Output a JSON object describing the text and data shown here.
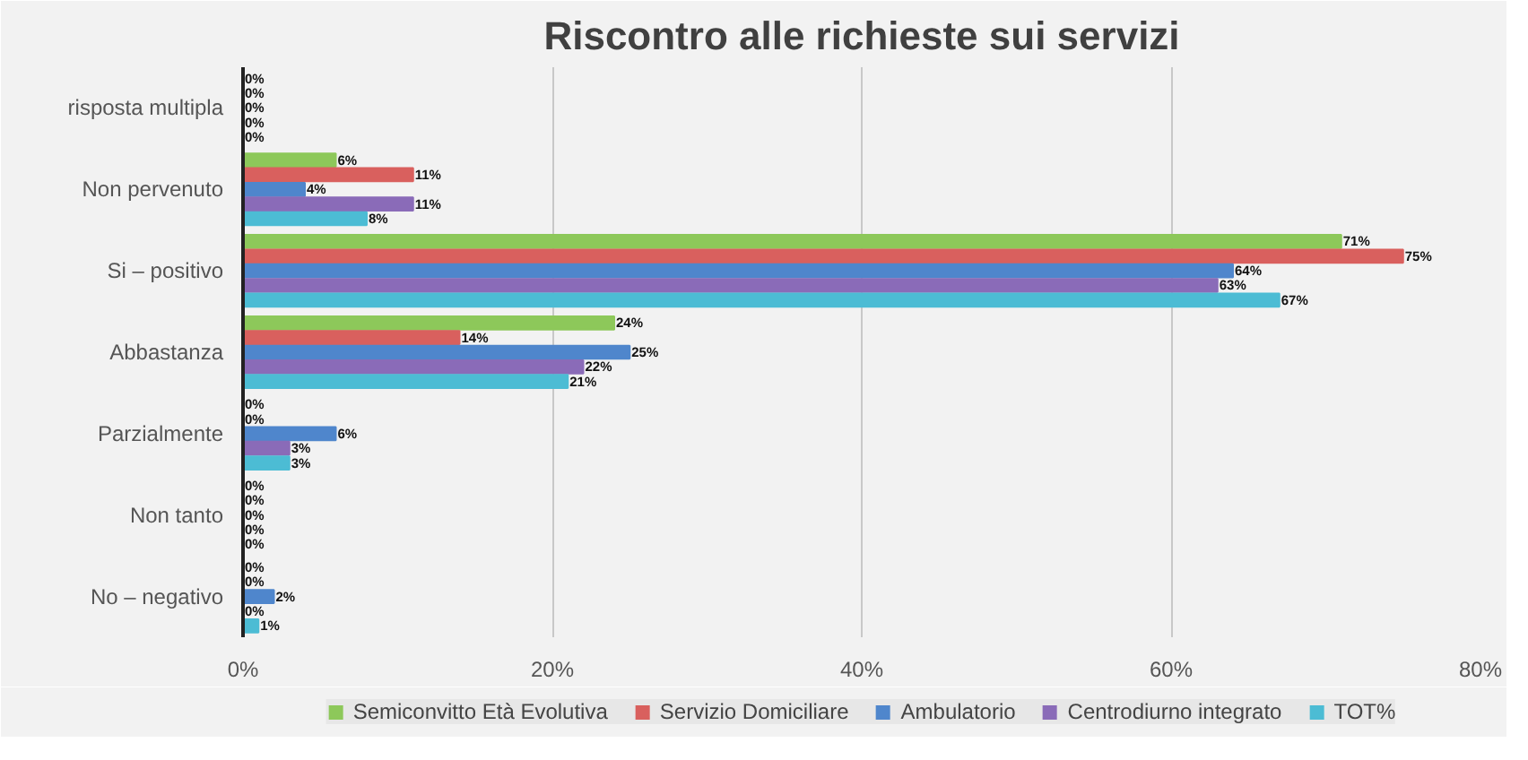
{
  "chart_data": {
    "type": "bar",
    "orientation": "horizontal",
    "title": "Riscontro alle richieste sui servizi",
    "categories": [
      "risposta multipla",
      "Non pervenuto",
      "Si – positivo",
      "Abbastanza",
      "Parzialmente",
      "Non tanto",
      "No – negativo"
    ],
    "series": [
      {
        "name": "Semiconvitto Età Evolutiva",
        "color": "#8dc85a",
        "values": [
          0,
          6,
          71,
          24,
          0,
          0,
          0
        ],
        "value_labels": [
          "0%",
          "6%",
          "71%",
          "24%",
          "0%",
          "0%",
          "0%"
        ]
      },
      {
        "name": "Servizio Domiciliare",
        "color": "#d9605e",
        "values": [
          0,
          11,
          75,
          14,
          0,
          0,
          0
        ],
        "value_labels": [
          "0%",
          "11%",
          "75%",
          "14%",
          "0%",
          "0%",
          "0%"
        ]
      },
      {
        "name": "Ambulatorio",
        "color": "#4f86cc",
        "values": [
          0,
          4,
          64,
          25,
          6,
          0,
          2
        ],
        "value_labels": [
          "0%",
          "4%",
          "64%",
          "25%",
          "6%",
          "0%",
          "2%"
        ]
      },
      {
        "name": "Centrodiurno integrato",
        "color": "#8a6bb8",
        "values": [
          0,
          11,
          63,
          22,
          3,
          0,
          0
        ],
        "value_labels": [
          "0%",
          "11%",
          "63%",
          "22%",
          "3%",
          "0%",
          "0%"
        ]
      },
      {
        "name": "TOT%",
        "color": "#4cbcd4",
        "values": [
          0,
          8,
          67,
          21,
          3,
          0,
          1
        ],
        "value_labels": [
          "0%",
          "8%",
          "67%",
          "21%",
          "3%",
          "0%",
          "1%"
        ]
      }
    ],
    "xlim": [
      0,
      80
    ],
    "xticks": [
      {
        "value": 0,
        "label": "0%"
      },
      {
        "value": 20,
        "label": "20%"
      },
      {
        "value": 40,
        "label": "40%"
      },
      {
        "value": 60,
        "label": "60%"
      },
      {
        "value": 80,
        "label": "80%"
      }
    ],
    "grid": "x",
    "legend": "bottom"
  }
}
